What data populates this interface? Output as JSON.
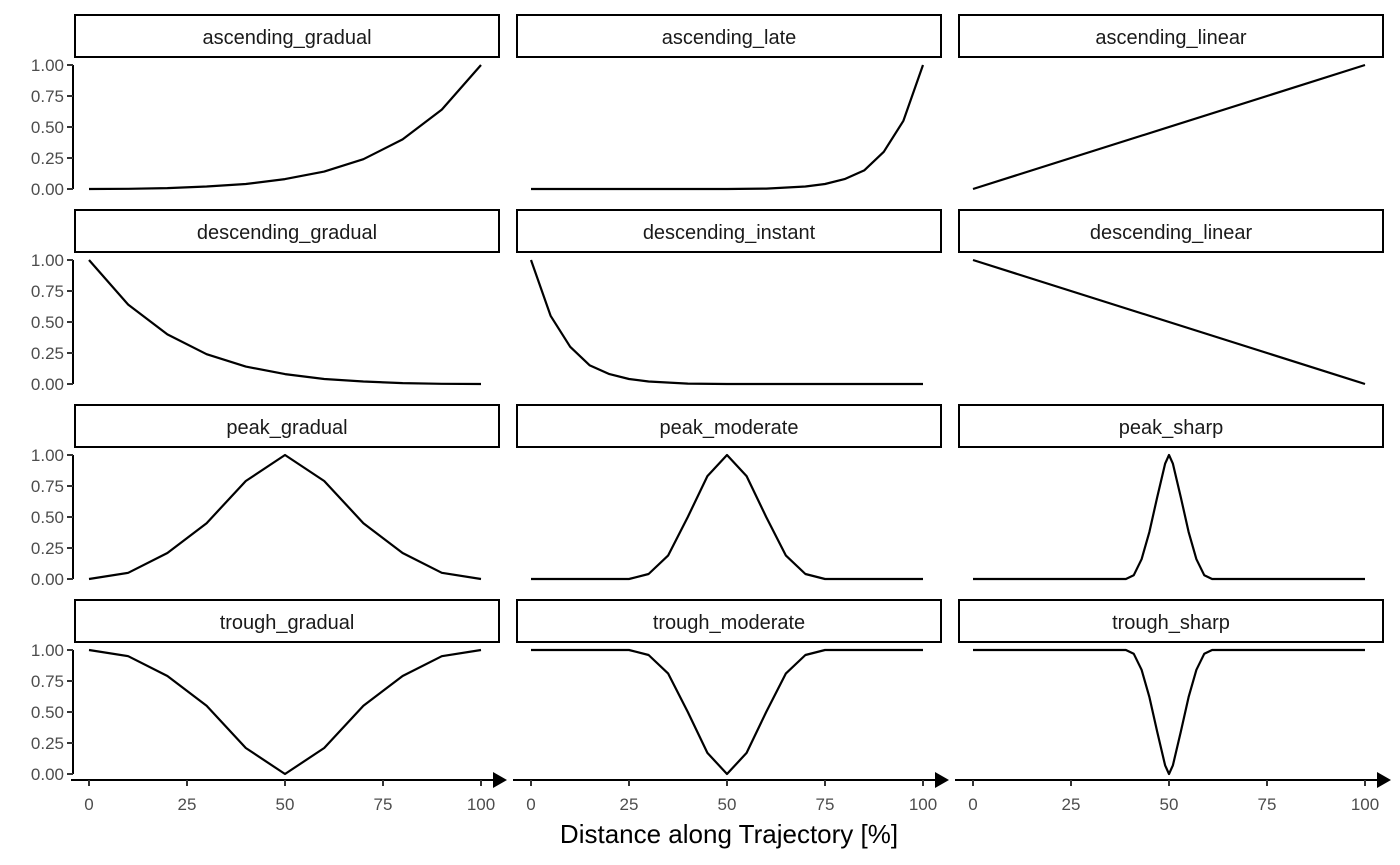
{
  "chart_data": {
    "type": "line",
    "layout": "facet-grid",
    "ncol": 3,
    "xlabel": "Distance along Trajectory [%]",
    "ylabel": "",
    "xlim": [
      0,
      100
    ],
    "ylim": [
      0,
      1
    ],
    "x_ticks": [
      "0",
      "25",
      "50",
      "75",
      "100"
    ],
    "y_ticks": [
      "0.00",
      "0.25",
      "0.50",
      "0.75",
      "1.00"
    ],
    "grid": false,
    "x_axis_arrow": true,
    "line_color": "#000000",
    "panels": [
      {
        "name": "ascending_gradual",
        "x": [
          0,
          10,
          20,
          30,
          40,
          50,
          60,
          70,
          80,
          90,
          100
        ],
        "y": [
          0.0,
          0.002,
          0.007,
          0.02,
          0.04,
          0.08,
          0.14,
          0.24,
          0.4,
          0.64,
          1.0
        ]
      },
      {
        "name": "ascending_late",
        "x": [
          0,
          10,
          20,
          30,
          40,
          50,
          60,
          70,
          75,
          80,
          85,
          90,
          95,
          100
        ],
        "y": [
          0.0,
          0.0,
          0.0,
          0.0,
          0.0,
          0.0,
          0.003,
          0.02,
          0.04,
          0.08,
          0.15,
          0.3,
          0.55,
          1.0
        ]
      },
      {
        "name": "ascending_linear",
        "x": [
          0,
          100
        ],
        "y": [
          0.0,
          1.0
        ]
      },
      {
        "name": "descending_gradual",
        "x": [
          0,
          10,
          20,
          30,
          40,
          50,
          60,
          70,
          80,
          90,
          100
        ],
        "y": [
          1.0,
          0.64,
          0.4,
          0.24,
          0.14,
          0.08,
          0.04,
          0.02,
          0.007,
          0.002,
          0.0
        ]
      },
      {
        "name": "descending_instant",
        "x": [
          0,
          5,
          10,
          15,
          20,
          25,
          30,
          40,
          50,
          60,
          70,
          80,
          90,
          100
        ],
        "y": [
          1.0,
          0.55,
          0.3,
          0.15,
          0.08,
          0.04,
          0.02,
          0.003,
          0.0,
          0.0,
          0.0,
          0.0,
          0.0,
          0.0
        ]
      },
      {
        "name": "descending_linear",
        "x": [
          0,
          100
        ],
        "y": [
          1.0,
          0.0
        ]
      },
      {
        "name": "peak_gradual",
        "x": [
          0,
          10,
          20,
          30,
          40,
          50,
          60,
          70,
          80,
          90,
          100
        ],
        "y": [
          0.0,
          0.05,
          0.21,
          0.45,
          0.79,
          1.0,
          0.79,
          0.45,
          0.21,
          0.05,
          0.0
        ]
      },
      {
        "name": "peak_moderate",
        "x": [
          0,
          20,
          25,
          30,
          35,
          40,
          45,
          50,
          55,
          60,
          65,
          70,
          75,
          80,
          100
        ],
        "y": [
          0.0,
          0.0,
          0.0,
          0.04,
          0.19,
          0.5,
          0.83,
          1.0,
          0.83,
          0.5,
          0.19,
          0.04,
          0.0,
          0.0,
          0.0
        ]
      },
      {
        "name": "peak_sharp",
        "x": [
          0,
          35,
          39,
          41,
          43,
          45,
          47,
          49,
          50,
          51,
          53,
          55,
          57,
          59,
          61,
          65,
          100
        ],
        "y": [
          0.0,
          0.0,
          0.0,
          0.03,
          0.16,
          0.38,
          0.66,
          0.93,
          1.0,
          0.93,
          0.66,
          0.38,
          0.16,
          0.03,
          0.0,
          0.0,
          0.0
        ]
      },
      {
        "name": "trough_gradual",
        "x": [
          0,
          10,
          20,
          30,
          40,
          50,
          60,
          70,
          80,
          90,
          100
        ],
        "y": [
          1.0,
          0.95,
          0.79,
          0.55,
          0.21,
          0.0,
          0.21,
          0.55,
          0.79,
          0.95,
          1.0
        ]
      },
      {
        "name": "trough_moderate",
        "x": [
          0,
          20,
          25,
          30,
          35,
          40,
          45,
          50,
          55,
          60,
          65,
          70,
          75,
          80,
          100
        ],
        "y": [
          1.0,
          1.0,
          1.0,
          0.96,
          0.81,
          0.5,
          0.17,
          0.0,
          0.17,
          0.5,
          0.81,
          0.96,
          1.0,
          1.0,
          1.0
        ]
      },
      {
        "name": "trough_sharp",
        "x": [
          0,
          35,
          39,
          41,
          43,
          45,
          47,
          49,
          50,
          51,
          53,
          55,
          57,
          59,
          61,
          65,
          100
        ],
        "y": [
          1.0,
          1.0,
          1.0,
          0.97,
          0.84,
          0.62,
          0.34,
          0.07,
          0.0,
          0.07,
          0.34,
          0.62,
          0.84,
          0.97,
          1.0,
          1.0,
          1.0
        ]
      }
    ]
  }
}
